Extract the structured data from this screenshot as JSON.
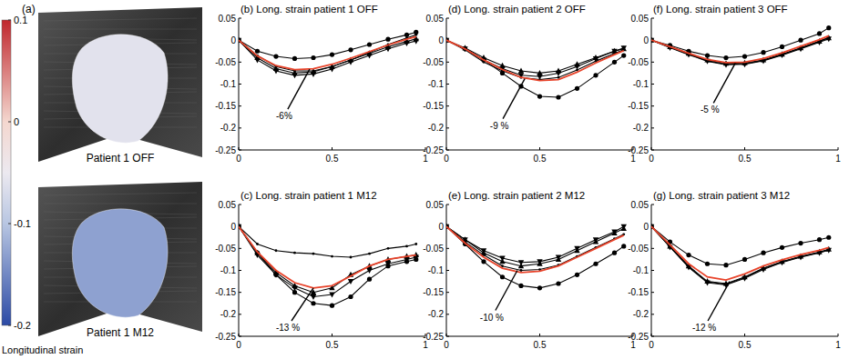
{
  "chart_data": [
    {
      "type": "line",
      "title": "(b) Long. strain patient 1 OFF",
      "x": [
        0,
        0.1,
        0.2,
        0.3,
        0.4,
        0.5,
        0.6,
        0.7,
        0.8,
        0.9,
        0.95
      ],
      "xlim": [
        0,
        1
      ],
      "xticks": [
        0,
        0.5,
        1
      ],
      "ylim": [
        -0.25,
        0.05
      ],
      "yticks": [
        0.05,
        0,
        -0.05,
        -0.1,
        -0.15,
        -0.2,
        -0.25
      ],
      "grid": false,
      "series": [
        {
          "color": "#000000",
          "marker": "circle",
          "line_style": "solid",
          "values": [
            0,
            -0.025,
            -0.037,
            -0.042,
            -0.04,
            -0.033,
            -0.022,
            -0.01,
            0.002,
            0.012,
            0.018
          ]
        },
        {
          "color": "#000000",
          "marker": "triangle-up",
          "line_style": "solid",
          "values": [
            0,
            -0.04,
            -0.065,
            -0.075,
            -0.072,
            -0.06,
            -0.045,
            -0.03,
            -0.015,
            -0.003,
            0.003
          ]
        },
        {
          "color": "#000000",
          "marker": "triangle-down",
          "line_style": "solid",
          "values": [
            0,
            -0.045,
            -0.07,
            -0.08,
            -0.077,
            -0.066,
            -0.05,
            -0.035,
            -0.02,
            -0.007,
            -0.002
          ]
        },
        {
          "color": "#000000",
          "marker": "point",
          "line_style": "solid",
          "values": [
            0,
            -0.035,
            -0.06,
            -0.07,
            -0.07,
            -0.06,
            -0.045,
            -0.028,
            -0.01,
            0.005,
            0.012
          ]
        },
        {
          "color": "#e8432a",
          "marker": "none",
          "line_style": "solid",
          "values": [
            0,
            -0.036,
            -0.058,
            -0.067,
            -0.065,
            -0.055,
            -0.041,
            -0.026,
            -0.011,
            0.002,
            0.008
          ]
        }
      ],
      "annotation": {
        "text": "-6%",
        "x": 0.38,
        "y": -0.066
      }
    },
    {
      "type": "line",
      "title": "(c) Long. strain patient 1 M12",
      "x": [
        0,
        0.1,
        0.2,
        0.3,
        0.4,
        0.5,
        0.6,
        0.7,
        0.8,
        0.9,
        0.95
      ],
      "xlim": [
        0,
        1
      ],
      "xticks": [
        0,
        0.5,
        1
      ],
      "ylim": [
        -0.25,
        0.05
      ],
      "yticks": [
        0.05,
        0,
        -0.05,
        -0.1,
        -0.15,
        -0.2,
        -0.25
      ],
      "grid": false,
      "series": [
        {
          "color": "#000000",
          "marker": "point",
          "line_style": "solid",
          "values": [
            0,
            -0.04,
            -0.055,
            -0.06,
            -0.062,
            -0.068,
            -0.07,
            -0.062,
            -0.05,
            -0.045,
            -0.04
          ]
        },
        {
          "color": "#000000",
          "marker": "circle",
          "line_style": "solid",
          "values": [
            0,
            -0.06,
            -0.11,
            -0.15,
            -0.175,
            -0.18,
            -0.16,
            -0.12,
            -0.09,
            -0.08,
            -0.075
          ]
        },
        {
          "color": "#000000",
          "marker": "triangle-up",
          "line_style": "solid",
          "values": [
            0,
            -0.06,
            -0.105,
            -0.135,
            -0.15,
            -0.14,
            -0.11,
            -0.09,
            -0.075,
            -0.068,
            -0.065
          ]
        },
        {
          "color": "#000000",
          "marker": "triangle-down",
          "line_style": "solid",
          "values": [
            0,
            -0.065,
            -0.11,
            -0.14,
            -0.16,
            -0.155,
            -0.125,
            -0.1,
            -0.085,
            -0.075,
            -0.07
          ]
        },
        {
          "color": "#e8432a",
          "marker": "none",
          "line_style": "solid",
          "values": [
            0,
            -0.058,
            -0.1,
            -0.128,
            -0.14,
            -0.135,
            -0.113,
            -0.09,
            -0.075,
            -0.068,
            -0.065
          ]
        }
      ],
      "annotation": {
        "text": "-13 %",
        "x": 0.4,
        "y": -0.14
      }
    },
    {
      "type": "line",
      "title": "(d) Long. strain patient 2 OFF",
      "x": [
        0,
        0.1,
        0.2,
        0.3,
        0.4,
        0.5,
        0.6,
        0.7,
        0.8,
        0.9,
        0.95
      ],
      "xlim": [
        0,
        1
      ],
      "xticks": [
        0,
        0.5,
        1
      ],
      "ylim": [
        -0.25,
        0.05
      ],
      "yticks": [
        0.05,
        0,
        -0.05,
        -0.1,
        -0.15,
        -0.2,
        -0.25
      ],
      "grid": false,
      "series": [
        {
          "color": "#000000",
          "marker": "circle",
          "line_style": "solid",
          "values": [
            0,
            -0.02,
            -0.045,
            -0.075,
            -0.105,
            -0.128,
            -0.13,
            -0.11,
            -0.08,
            -0.05,
            -0.035
          ]
        },
        {
          "color": "#000000",
          "marker": "triangle-up",
          "line_style": "solid",
          "values": [
            0,
            -0.018,
            -0.04,
            -0.058,
            -0.07,
            -0.075,
            -0.07,
            -0.055,
            -0.04,
            -0.025,
            -0.02
          ]
        },
        {
          "color": "#000000",
          "marker": "triangle-down",
          "line_style": "solid",
          "values": [
            0,
            -0.02,
            -0.045,
            -0.065,
            -0.08,
            -0.083,
            -0.075,
            -0.06,
            -0.042,
            -0.025,
            -0.018
          ]
        },
        {
          "color": "#000000",
          "marker": "point",
          "line_style": "solid",
          "values": [
            0,
            -0.022,
            -0.05,
            -0.07,
            -0.085,
            -0.09,
            -0.085,
            -0.068,
            -0.048,
            -0.03,
            -0.022
          ]
        },
        {
          "color": "#e8432a",
          "marker": "none",
          "line_style": "solid",
          "values": [
            0,
            -0.02,
            -0.045,
            -0.067,
            -0.085,
            -0.092,
            -0.09,
            -0.073,
            -0.052,
            -0.033,
            -0.024
          ]
        }
      ],
      "annotation": {
        "text": "-9 %",
        "x": 0.42,
        "y": -0.088
      }
    },
    {
      "type": "line",
      "title": "(e) Long. strain patient 2 M12",
      "x": [
        0,
        0.1,
        0.2,
        0.3,
        0.4,
        0.5,
        0.6,
        0.7,
        0.8,
        0.9,
        0.95
      ],
      "xlim": [
        0,
        1
      ],
      "xticks": [
        0,
        0.5,
        1
      ],
      "ylim": [
        -0.25,
        0.05
      ],
      "yticks": [
        0.05,
        0,
        -0.05,
        -0.1,
        -0.15,
        -0.2,
        -0.25
      ],
      "grid": false,
      "series": [
        {
          "color": "#000000",
          "marker": "circle",
          "line_style": "solid",
          "values": [
            0,
            -0.04,
            -0.08,
            -0.115,
            -0.135,
            -0.14,
            -0.13,
            -0.11,
            -0.085,
            -0.06,
            -0.045
          ]
        },
        {
          "color": "#000000",
          "marker": "triangle-up",
          "line_style": "solid",
          "values": [
            0,
            -0.03,
            -0.06,
            -0.08,
            -0.09,
            -0.085,
            -0.075,
            -0.055,
            -0.035,
            -0.015,
            -0.005
          ]
        },
        {
          "color": "#000000",
          "marker": "triangle-down",
          "line_style": "solid",
          "values": [
            0,
            -0.03,
            -0.055,
            -0.072,
            -0.082,
            -0.08,
            -0.07,
            -0.05,
            -0.03,
            -0.012,
            0
          ]
        },
        {
          "color": "#000000",
          "marker": "point",
          "line_style": "solid",
          "values": [
            0,
            -0.035,
            -0.065,
            -0.09,
            -0.1,
            -0.098,
            -0.088,
            -0.068,
            -0.048,
            -0.028,
            -0.018
          ]
        },
        {
          "color": "#e8432a",
          "marker": "none",
          "line_style": "solid",
          "values": [
            0,
            -0.038,
            -0.07,
            -0.095,
            -0.105,
            -0.102,
            -0.09,
            -0.07,
            -0.05,
            -0.03,
            -0.02
          ]
        }
      ],
      "annotation": {
        "text": "-10 %",
        "x": 0.38,
        "y": -0.1
      }
    },
    {
      "type": "line",
      "title": "(f) Long. strain patient 3 OFF",
      "x": [
        0,
        0.1,
        0.2,
        0.3,
        0.4,
        0.5,
        0.6,
        0.7,
        0.8,
        0.9,
        0.95
      ],
      "xlim": [
        0,
        1
      ],
      "xticks": [
        0,
        0.5,
        1
      ],
      "ylim": [
        -0.25,
        0.05
      ],
      "yticks": [
        0.05,
        0,
        -0.05,
        -0.1,
        -0.15,
        -0.2,
        -0.25
      ],
      "grid": false,
      "series": [
        {
          "color": "#000000",
          "marker": "circle",
          "line_style": "solid",
          "values": [
            0,
            -0.012,
            -0.025,
            -0.035,
            -0.04,
            -0.037,
            -0.028,
            -0.015,
            0,
            0.015,
            0.028
          ]
        },
        {
          "color": "#000000",
          "marker": "triangle-up",
          "line_style": "solid",
          "values": [
            0,
            -0.015,
            -0.03,
            -0.045,
            -0.053,
            -0.052,
            -0.045,
            -0.032,
            -0.018,
            -0.003,
            0.005
          ]
        },
        {
          "color": "#000000",
          "marker": "triangle-down",
          "line_style": "solid",
          "values": [
            0,
            -0.017,
            -0.033,
            -0.048,
            -0.056,
            -0.055,
            -0.047,
            -0.034,
            -0.02,
            -0.005,
            0.003
          ]
        },
        {
          "color": "#000000",
          "marker": "point",
          "line_style": "solid",
          "values": [
            0,
            -0.016,
            -0.032,
            -0.047,
            -0.055,
            -0.054,
            -0.046,
            -0.033,
            -0.018,
            -0.002,
            0.006
          ]
        },
        {
          "color": "#e8432a",
          "marker": "none",
          "line_style": "solid",
          "values": [
            0,
            -0.015,
            -0.03,
            -0.044,
            -0.051,
            -0.05,
            -0.042,
            -0.029,
            -0.014,
            0.001,
            0.01
          ]
        }
      ],
      "annotation": {
        "text": "-5 %",
        "x": 0.45,
        "y": -0.052
      }
    },
    {
      "type": "line",
      "title": "(g) Long. strain patient 3 M12",
      "x": [
        0,
        0.1,
        0.2,
        0.3,
        0.4,
        0.5,
        0.6,
        0.7,
        0.8,
        0.9,
        0.95
      ],
      "xlim": [
        0,
        1
      ],
      "xticks": [
        0,
        0.5,
        1
      ],
      "ylim": [
        -0.25,
        0.05
      ],
      "yticks": [
        0.05,
        0,
        -0.05,
        -0.1,
        -0.15,
        -0.2,
        -0.25
      ],
      "grid": false,
      "series": [
        {
          "color": "#000000",
          "marker": "circle",
          "line_style": "solid",
          "values": [
            0,
            -0.035,
            -0.065,
            -0.085,
            -0.088,
            -0.075,
            -0.06,
            -0.048,
            -0.038,
            -0.03,
            -0.025
          ]
        },
        {
          "color": "#000000",
          "marker": "triangle-up",
          "line_style": "solid",
          "values": [
            0,
            -0.045,
            -0.09,
            -0.125,
            -0.13,
            -0.115,
            -0.095,
            -0.08,
            -0.068,
            -0.058,
            -0.052
          ]
        },
        {
          "color": "#000000",
          "marker": "triangle-down",
          "line_style": "solid",
          "values": [
            0,
            -0.047,
            -0.093,
            -0.128,
            -0.133,
            -0.118,
            -0.098,
            -0.082,
            -0.07,
            -0.06,
            -0.054
          ]
        },
        {
          "color": "#000000",
          "marker": "point",
          "line_style": "solid",
          "values": [
            0,
            -0.046,
            -0.092,
            -0.126,
            -0.132,
            -0.116,
            -0.096,
            -0.081,
            -0.069,
            -0.059,
            -0.053
          ]
        },
        {
          "color": "#e8432a",
          "marker": "none",
          "line_style": "solid",
          "values": [
            0,
            -0.042,
            -0.085,
            -0.115,
            -0.122,
            -0.108,
            -0.09,
            -0.076,
            -0.064,
            -0.054,
            -0.048
          ]
        }
      ],
      "annotation": {
        "text": "-12 %",
        "x": 0.42,
        "y": -0.125
      }
    }
  ],
  "panel_a": {
    "label": "(a)",
    "colorbar": {
      "title": "Longitudinal strain",
      "range": [
        -0.2,
        0.1
      ],
      "ticks": [
        0.1,
        0,
        -0.1,
        -0.2
      ]
    },
    "images": [
      {
        "label": "Patient 1 OFF",
        "strain": -0.06
      },
      {
        "label": "Patient 1 M12",
        "strain": -0.13
      }
    ]
  }
}
